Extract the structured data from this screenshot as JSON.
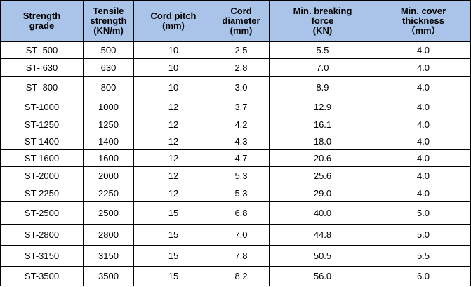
{
  "table": {
    "header": [
      "Strength\ngrade",
      "Tensile\nstrength\n(KN/m)",
      "Cord pitch\n(mm)",
      "Cord\ndiameter\n(mm)",
      "Min. breaking\nforce\n(KN)",
      "Min. cover\nthickness\n（mm）"
    ],
    "rows": [
      [
        "ST- 500",
        "500",
        "10",
        "2.5",
        "5.5",
        "4.0"
      ],
      [
        "ST- 630",
        "630",
        "10",
        "2.8",
        "7.0",
        "4.0"
      ],
      [
        "ST- 800",
        "800",
        "10",
        "3.0",
        "8.9",
        "4.0"
      ],
      [
        "ST-1000",
        "1000",
        "12",
        "3.7",
        "12.9",
        "4.0"
      ],
      [
        "ST-1250",
        "1250",
        "12",
        "4.2",
        "16.1",
        "4.0"
      ],
      [
        "ST-1400",
        "1400",
        "12",
        "4.3",
        "18.0",
        "4.0"
      ],
      [
        "ST-1600",
        "1600",
        "12",
        "4.7",
        "20.6",
        "4.0"
      ],
      [
        "ST-2000",
        "2000",
        "12",
        "5.3",
        "25.6",
        "4.0"
      ],
      [
        "ST-2250",
        "2250",
        "12",
        "5.3",
        "29.0",
        "4.0"
      ],
      [
        "ST-2500",
        "2500",
        "15",
        "6.8",
        "40.0",
        "5.0"
      ],
      [
        "ST-2800",
        "2800",
        "15",
        "7.0",
        "44.8",
        "5.0"
      ],
      [
        "ST-3150",
        "3150",
        "15",
        "7.8",
        "50.5",
        "5.5"
      ],
      [
        "ST-3500",
        "3500",
        "15",
        "8.2",
        "56.0",
        "6.0"
      ]
    ]
  }
}
